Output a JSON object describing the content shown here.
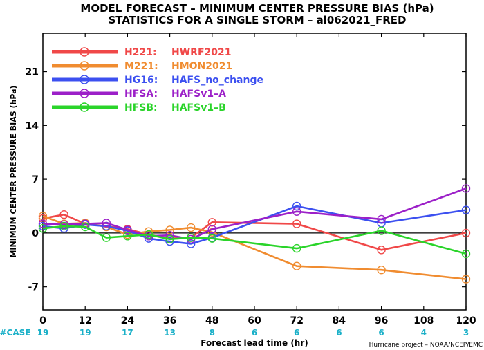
{
  "chart_data": {
    "type": "line",
    "title": "MODEL FORECAST – MINIMUM CENTER PRESSURE BIAS (hPa)",
    "subtitle": "STATISTICS FOR A SINGLE STORM – al062021_FRED",
    "ylabel": "MINIMUM CENTER PRESSURE BIAS (hPa)",
    "xlabel": "Forecast lead time (hr)",
    "xlim": [
      0,
      120
    ],
    "ylim": [
      -10,
      26
    ],
    "xticks": [
      0,
      12,
      24,
      36,
      48,
      60,
      72,
      84,
      96,
      108,
      120
    ],
    "yticks": [
      -7,
      0,
      7,
      14,
      21
    ],
    "zero_line": true,
    "legend_position": "top-left",
    "case_label": "#CASE",
    "cases": [
      19,
      19,
      17,
      13,
      8,
      6,
      6,
      6,
      6,
      4,
      3
    ],
    "credit": "Hurricane project – NOAA/NCEP/EMC",
    "series": [
      {
        "code": "H221",
        "name": "HWRF2021",
        "color": "#f04848",
        "x": [
          0,
          6,
          12,
          18,
          24,
          30,
          36,
          42,
          48,
          72,
          96,
          120
        ],
        "y": [
          1.9,
          2.4,
          1.2,
          0.9,
          0.5,
          -0.2,
          -0.7,
          -0.6,
          1.4,
          1.2,
          -2.2,
          0.0
        ]
      },
      {
        "code": "M221",
        "name": "HMON2021",
        "color": "#f08c30",
        "x": [
          0,
          6,
          12,
          18,
          24,
          30,
          36,
          42,
          48,
          72,
          96,
          120
        ],
        "y": [
          2.2,
          1.2,
          1.3,
          0.8,
          -0.2,
          0.2,
          0.4,
          0.7,
          0.1,
          -4.3,
          -4.8,
          -6.0
        ]
      },
      {
        "code": "HG16",
        "name": "HAFS_no_change",
        "color": "#3c50f0",
        "x": [
          0,
          6,
          12,
          18,
          24,
          30,
          36,
          42,
          48,
          72,
          96,
          120
        ],
        "y": [
          0.9,
          0.6,
          1.1,
          0.9,
          0.3,
          -0.7,
          -1.1,
          -1.4,
          -0.6,
          3.5,
          1.3,
          3.0
        ]
      },
      {
        "code": "HFSA",
        "name": "HAFSv1–A",
        "color": "#9c20c8",
        "x": [
          0,
          6,
          12,
          18,
          24,
          30,
          36,
          42,
          48,
          72,
          96,
          120
        ],
        "y": [
          1.2,
          1.1,
          1.2,
          1.3,
          0.4,
          -0.4,
          -0.3,
          -0.8,
          0.5,
          2.8,
          1.8,
          5.8
        ]
      },
      {
        "code": "HFSB",
        "name": "HAFSv1–B",
        "color": "#2ad42a",
        "x": [
          0,
          6,
          12,
          18,
          24,
          30,
          36,
          42,
          48,
          72,
          96,
          120
        ],
        "y": [
          0.6,
          0.9,
          0.8,
          -0.6,
          -0.4,
          -0.2,
          -0.8,
          -0.6,
          -0.7,
          -2.0,
          0.3,
          -2.7
        ]
      }
    ]
  }
}
